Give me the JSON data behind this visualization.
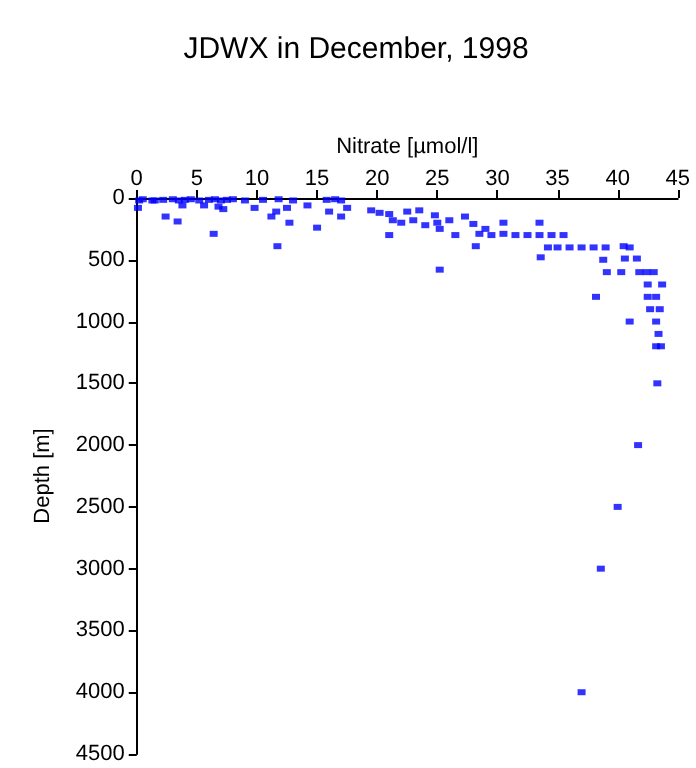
{
  "chart_data": {
    "type": "scatter",
    "title": "JDWX in December, 1998",
    "xlabel": "Nitrate [µmol/l]",
    "ylabel": "Depth [m]",
    "xlim": [
      0,
      45
    ],
    "xticks": [
      0,
      5,
      10,
      15,
      20,
      25,
      30,
      35,
      40,
      45
    ],
    "ylim": [
      4500,
      0
    ],
    "yticks": [
      0,
      500,
      1000,
      1500,
      2000,
      2500,
      3000,
      3500,
      4000,
      4500
    ],
    "grid": false,
    "marker": "square",
    "series": [
      {
        "color": "#0000ff",
        "x": [
          0.2,
          0.5,
          1.5,
          2.2,
          3,
          3.5,
          4,
          4.5,
          5.2,
          6,
          6.5,
          7,
          7.5,
          8,
          9,
          10.5,
          11.8,
          13,
          15.8,
          16.5,
          17,
          0.1,
          1.3,
          3.8,
          5.6,
          6.8,
          7.2,
          9.8,
          11.6,
          12.5,
          14.2,
          16,
          17.5,
          19.5,
          20.2,
          21,
          22.5,
          23.5,
          24.8,
          2.4,
          3.4,
          6.4,
          11.7,
          11.2,
          12.7,
          15,
          17,
          21.3,
          22,
          23,
          24,
          25,
          26,
          27.3,
          28,
          29,
          30.5,
          33.5,
          25.2,
          21,
          26.5,
          28.5,
          29.5,
          30.5,
          31.5,
          32.5,
          33.5,
          34.5,
          35.5,
          28.2,
          34.2,
          35,
          36,
          37,
          38,
          39,
          40.5,
          41,
          38.8,
          25.2,
          40.6,
          41.6,
          33.6,
          39.1,
          40.3,
          41.8,
          42.4,
          43,
          42.5,
          43.7,
          42.5,
          43.2,
          38.2,
          42.7,
          43.5,
          41,
          43.2,
          43.4,
          43.2,
          43.6,
          43.3,
          41.7,
          40,
          38.6,
          37
        ],
        "values": [
          20,
          10,
          20,
          15,
          10,
          20,
          15,
          10,
          20,
          15,
          10,
          20,
          15,
          10,
          20,
          15,
          10,
          20,
          15,
          10,
          20,
          80,
          20,
          60,
          60,
          70,
          90,
          80,
          110,
          80,
          60,
          110,
          80,
          100,
          120,
          130,
          110,
          100,
          140,
          150,
          190,
          290,
          390,
          150,
          200,
          240,
          150,
          180,
          200,
          180,
          220,
          200,
          180,
          150,
          210,
          250,
          200,
          200,
          250,
          300,
          300,
          290,
          300,
          290,
          300,
          300,
          300,
          300,
          300,
          390,
          400,
          400,
          400,
          400,
          400,
          400,
          390,
          400,
          500,
          580,
          490,
          490,
          480,
          600,
          600,
          600,
          600,
          600,
          700,
          700,
          800,
          800,
          800,
          900,
          900,
          1000,
          1000,
          1100,
          1200,
          1200,
          1500,
          2000,
          2500,
          3000,
          4000
        ]
      }
    ]
  }
}
